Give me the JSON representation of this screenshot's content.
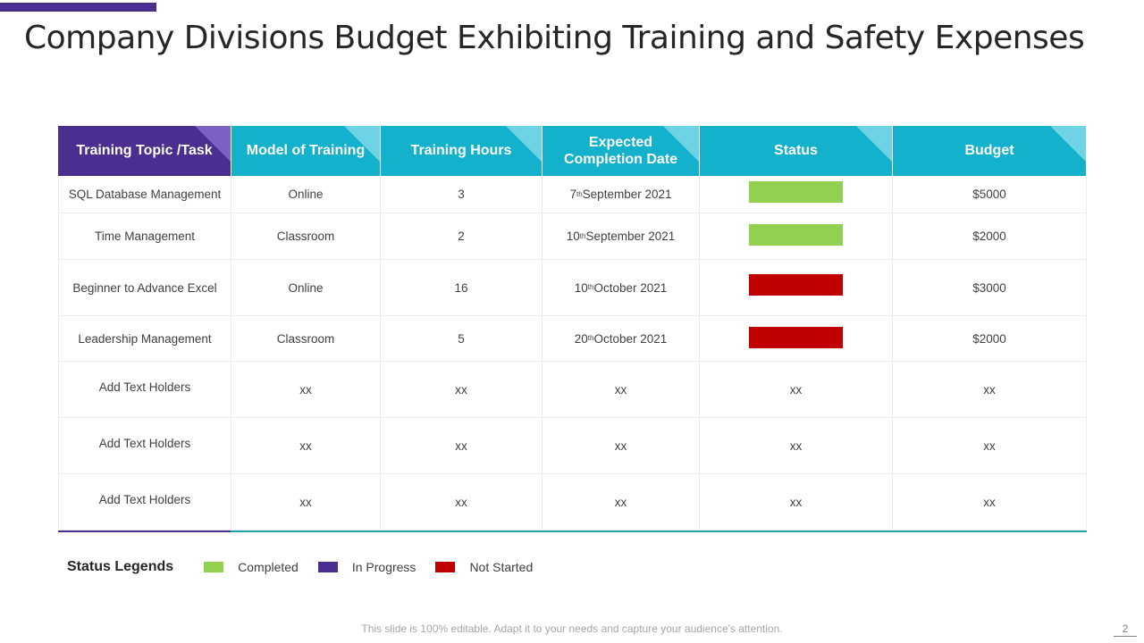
{
  "title": "Company Divisions Budget Exhibiting Training and Safety Expenses",
  "colors": {
    "accent_purple": "#4b2e8f",
    "header_teal": "#14b1cd",
    "completed": "#92d050",
    "in_progress": "#4b2e8f",
    "not_started": "#c00000"
  },
  "table": {
    "headers": [
      "Training Topic /Task",
      "Model of Training",
      "Training Hours",
      "Expected Completion Date",
      "Status",
      "Budget"
    ],
    "rows": [
      {
        "topic": "SQL Database Management",
        "model": "Online",
        "hours": "3",
        "date_day": "7",
        "date_suffix": "th",
        "date_rest": " September 2021",
        "status": "Completed",
        "budget": "$5000"
      },
      {
        "topic": "Time Management",
        "model": "Classroom",
        "hours": "2",
        "date_day": "10",
        "date_suffix": "th",
        "date_rest": " September 2021",
        "status": "Completed",
        "budget": "$2000"
      },
      {
        "topic": "Beginner to Advance Excel",
        "model": "Online",
        "hours": "16",
        "date_day": "10",
        "date_suffix": "th",
        "date_rest": " October 2021",
        "status": "Not Started",
        "budget": "$3000"
      },
      {
        "topic": "Leadership Management",
        "model": "Classroom",
        "hours": "5",
        "date_day": "20",
        "date_suffix": "th",
        "date_rest": " October 2021",
        "status": "Not Started",
        "budget": "$2000"
      },
      {
        "topic": "Add Text Holders",
        "model": "xx",
        "hours": "xx",
        "date": "xx",
        "status": "xx",
        "budget": "xx"
      },
      {
        "topic": "Add Text Holders",
        "model": "xx",
        "hours": "xx",
        "date": "xx",
        "status": "xx",
        "budget": "xx"
      },
      {
        "topic": "Add Text Holders",
        "model": "xx",
        "hours": "xx",
        "date": "xx",
        "status": "xx",
        "budget": "xx"
      }
    ]
  },
  "legend": {
    "title": "Status Legends",
    "items": [
      {
        "label": "Completed",
        "color": "#92d050"
      },
      {
        "label": "In Progress",
        "color": "#4b2e8f"
      },
      {
        "label": "Not Started",
        "color": "#c00000"
      }
    ]
  },
  "footer": {
    "note": "This slide is 100% editable. Adapt it to your needs and capture your audience's attention.",
    "page_number": "2"
  }
}
